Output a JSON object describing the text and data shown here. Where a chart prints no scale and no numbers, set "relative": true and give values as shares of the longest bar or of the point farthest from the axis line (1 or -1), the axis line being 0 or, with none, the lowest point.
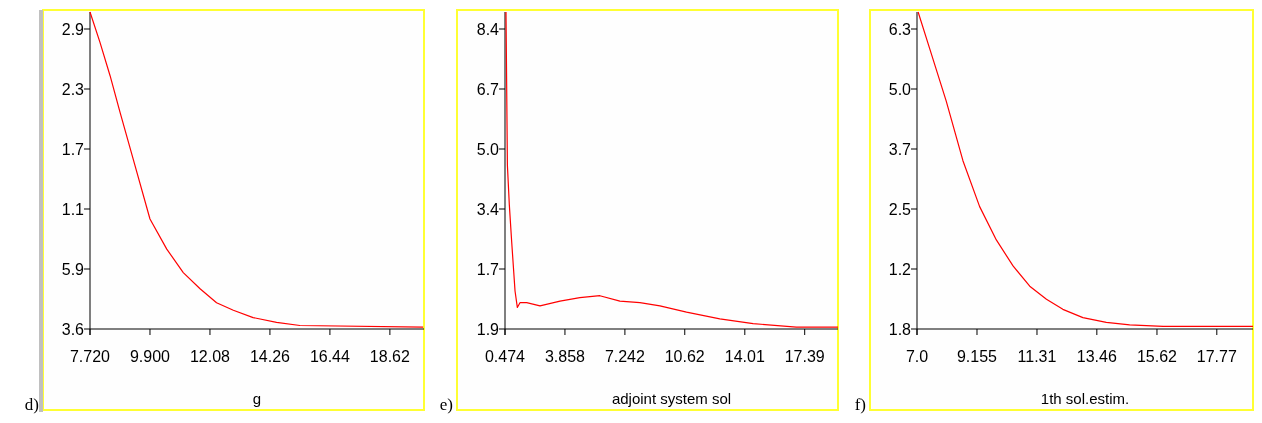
{
  "chart_data": [
    {
      "type": "line",
      "relative": true,
      "xlabel": "g",
      "annotations": [
        "d)",
        "3.6",
        "5.9",
        "1.1",
        "1.7",
        "2.3",
        "2.9"
      ],
      "xlim": [
        7.72,
        19.86
      ],
      "xticks": [
        {
          "value": 7.72,
          "label": "7.720"
        },
        {
          "value": 9.9,
          "label": "9.900"
        },
        12.08,
        14.26,
        16.44,
        18.62
      ],
      "series": [
        {
          "color": "#ff0000",
          "x": [
            7.72,
            8.08,
            8.45,
            8.81,
            9.29,
            9.9,
            10.51,
            11.11,
            11.72,
            12.32,
            12.93,
            13.65,
            14.5,
            15.35,
            19.83
          ],
          "values": [
            1,
            0.905,
            0.799,
            0.684,
            0.536,
            0.347,
            0.252,
            0.178,
            0.127,
            0.083,
            0.059,
            0.036,
            0.021,
            0.011,
            0.006
          ]
        }
      ]
    },
    {
      "type": "line",
      "relative": true,
      "xlabel": "adjoint system sol",
      "annotations": [
        "e)",
        "1.9",
        "1.7",
        "3.4",
        "5.0",
        "6.7",
        "8.4"
      ],
      "xlim": [
        0.474,
        19.27
      ],
      "xticks": [
        0.474,
        3.858,
        7.242,
        10.62,
        14.01,
        17.39
      ],
      "series": [
        {
          "color": "#ff0000",
          "x": [
            0.53,
            0.61,
            0.72,
            0.85,
            1.04,
            1.17,
            1.32,
            1.7,
            2.45,
            3.58,
            4.7,
            5.83,
            6.96,
            8.09,
            9.22,
            10.72,
            12.6,
            14.48,
            16.92,
            19.27
          ],
          "values": [
            1,
            0.516,
            0.39,
            0.276,
            0.12,
            0.068,
            0.083,
            0.083,
            0.073,
            0.088,
            0.099,
            0.105,
            0.088,
            0.083,
            0.073,
            0.053,
            0.032,
            0.017,
            0.006,
            0.006
          ]
        }
      ]
    },
    {
      "type": "line",
      "relative": true,
      "xlabel": "1th sol.estim.",
      "annotations": [
        "f)",
        "1.8",
        "1.2",
        "2.5",
        "3.7",
        "5.0",
        "6.3"
      ],
      "xlim": [
        7.0,
        19.07
      ],
      "xticks": [
        {
          "value": 7,
          "label": "7.0"
        },
        9.155,
        11.31,
        13.46,
        15.62,
        17.77
      ],
      "series": [
        {
          "color": "#ff0000",
          "x": [
            7.04,
            7.45,
            8.05,
            8.65,
            9.25,
            9.85,
            10.45,
            11.05,
            11.65,
            12.24,
            12.96,
            13.8,
            14.64,
            15.84,
            19.07
          ],
          "values": [
            1,
            0.886,
            0.719,
            0.531,
            0.386,
            0.281,
            0.199,
            0.135,
            0.094,
            0.062,
            0.036,
            0.021,
            0.013,
            0.008,
            0.008
          ]
        }
      ]
    }
  ]
}
